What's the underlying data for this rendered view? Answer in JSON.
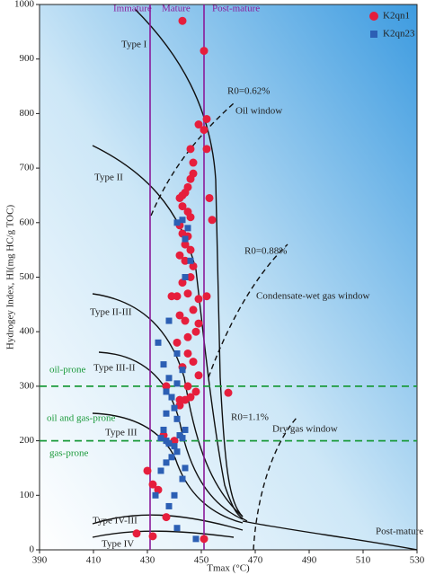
{
  "chart_data": {
    "type": "scatter",
    "xlabel": "Tmax (°C)",
    "ylabel": "Hydrogey Index, HI(mg HC/g TOC)",
    "xlim": [
      390,
      530
    ],
    "xticks": [
      390,
      410,
      430,
      450,
      470,
      490,
      510,
      530
    ],
    "ylim": [
      0,
      1000
    ],
    "yticks": [
      0,
      100,
      200,
      300,
      400,
      500,
      600,
      700,
      800,
      900,
      1000
    ],
    "tmax_boundaries": [
      431,
      451
    ],
    "hi_boundaries": [
      300,
      200
    ],
    "annotations": [
      "Immature",
      "Mature",
      "Post-mature",
      "Type I",
      "R0=0.62%",
      "Oil window",
      "Type II",
      "R0=0.88%",
      "Condensate-wet gas window",
      "Type II-III",
      "Type III-II",
      "oil-prone",
      "oil and gas-prone",
      "Type III",
      "gas-prone",
      "R0=1.1%",
      "Dry gas window",
      "Type IV-III",
      "Type IV",
      "Post-mature"
    ],
    "series": [
      {
        "name": "K2qn1",
        "color": "#e61e3c",
        "marker": "circle",
        "x": [
          443,
          451,
          449,
          452,
          451,
          452,
          453,
          454,
          446,
          447,
          447,
          446,
          445,
          444,
          443,
          442,
          443,
          445,
          446,
          442,
          443,
          445,
          444,
          446,
          442,
          444,
          447,
          446,
          443,
          441,
          439,
          445,
          449,
          452,
          447,
          442,
          444,
          449,
          448,
          445,
          441,
          445,
          447,
          443,
          449,
          445,
          448,
          442,
          446,
          444,
          460,
          442,
          437,
          430,
          432,
          434,
          437,
          432,
          426,
          451,
          436,
          440
        ],
        "values": [
          970,
          915,
          780,
          790,
          770,
          735,
          645,
          605,
          735,
          710,
          690,
          680,
          665,
          655,
          650,
          645,
          630,
          620,
          610,
          595,
          580,
          575,
          560,
          550,
          540,
          530,
          520,
          500,
          490,
          465,
          465,
          470,
          460,
          465,
          440,
          430,
          420,
          415,
          400,
          390,
          380,
          360,
          345,
          335,
          320,
          300,
          290,
          275,
          280,
          275,
          288,
          265,
          300,
          145,
          120,
          110,
          60,
          25,
          30,
          20,
          210,
          200
        ]
      },
      {
        "name": "K2qn23",
        "color": "#2c5fb4",
        "marker": "square",
        "x": [
          441,
          443,
          445,
          444,
          446,
          444,
          438,
          434,
          441,
          436,
          443,
          438,
          441,
          437,
          439,
          440,
          437,
          441,
          436,
          435,
          437,
          438,
          440,
          442,
          443,
          444,
          441,
          439,
          437,
          444,
          443,
          435,
          433,
          440,
          438,
          441,
          448
        ],
        "values": [
          600,
          605,
          590,
          570,
          530,
          500,
          420,
          380,
          360,
          340,
          330,
          315,
          305,
          290,
          280,
          260,
          250,
          240,
          220,
          205,
          200,
          195,
          190,
          210,
          205,
          220,
          180,
          170,
          160,
          150,
          130,
          145,
          100,
          100,
          80,
          40,
          20
        ]
      }
    ]
  }
}
